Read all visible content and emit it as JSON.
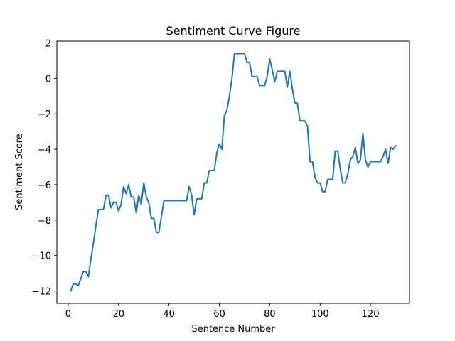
{
  "chart_data": {
    "type": "line",
    "title": "Sentiment Curve Figure",
    "xlabel": "Sentence Number",
    "ylabel": "Sentiment Score",
    "xlim": [
      -4.5,
      135.5
    ],
    "ylim": [
      -12.7,
      2.1
    ],
    "xticks": [
      0,
      20,
      40,
      60,
      80,
      100,
      120
    ],
    "yticks": [
      -12,
      -10,
      -8,
      -6,
      -4,
      -2,
      0,
      2
    ],
    "grid": false,
    "line_color": "#1f77b4",
    "series": [
      {
        "x": [
          1,
          2,
          3,
          4,
          5,
          6,
          7,
          8,
          9,
          10,
          11,
          12,
          13,
          14,
          15,
          16,
          17,
          18,
          19,
          20,
          21,
          22,
          23,
          24,
          25,
          26,
          27,
          28,
          29,
          30,
          31,
          32,
          33,
          34,
          35,
          36,
          37,
          38,
          39,
          40,
          41,
          42,
          43,
          44,
          45,
          46,
          47,
          48,
          49,
          50,
          51,
          52,
          53,
          54,
          55,
          56,
          57,
          58,
          59,
          60,
          61,
          62,
          63,
          64,
          65,
          66,
          67,
          68,
          69,
          70,
          71,
          72,
          73,
          74,
          75,
          76,
          77,
          78,
          79,
          80,
          81,
          82,
          83,
          84,
          85,
          86,
          87,
          88,
          89,
          90,
          91,
          92,
          93,
          94,
          95,
          96,
          97,
          98,
          99,
          100,
          101,
          102,
          103,
          104,
          105,
          106,
          107,
          108,
          109,
          110,
          111,
          112,
          113,
          114,
          115,
          116,
          117,
          118,
          119,
          120,
          121,
          122,
          123,
          124,
          125,
          126,
          127,
          128,
          129,
          130
        ],
        "y": [
          -12.0,
          -11.6,
          -11.6,
          -11.7,
          -11.3,
          -10.9,
          -10.9,
          -11.2,
          -10.2,
          -9.3,
          -8.3,
          -7.4,
          -7.4,
          -7.4,
          -6.6,
          -6.6,
          -7.3,
          -7.0,
          -7.0,
          -7.5,
          -7.1,
          -6.1,
          -6.5,
          -6.0,
          -6.7,
          -6.7,
          -7.6,
          -6.6,
          -7.1,
          -5.9,
          -6.7,
          -7.0,
          -7.9,
          -7.9,
          -8.7,
          -8.7,
          -7.8,
          -6.9,
          -6.9,
          -6.9,
          -6.9,
          -6.9,
          -6.9,
          -6.9,
          -6.9,
          -6.9,
          -6.9,
          -6.1,
          -6.6,
          -7.7,
          -6.8,
          -6.8,
          -6.8,
          -5.9,
          -5.9,
          -5.2,
          -5.2,
          -5.2,
          -4.2,
          -3.7,
          -4.0,
          -2.1,
          -1.8,
          -1.0,
          0.0,
          1.4,
          1.4,
          1.4,
          1.4,
          1.4,
          0.9,
          0.9,
          0.1,
          0.1,
          0.1,
          -0.4,
          -0.4,
          -0.4,
          0.1,
          1.1,
          0.5,
          -0.2,
          0.4,
          0.4,
          0.4,
          0.4,
          -0.5,
          0.4,
          -0.6,
          -1.4,
          -1.4,
          -2.4,
          -2.4,
          -2.4,
          -2.7,
          -4.7,
          -4.7,
          -5.6,
          -5.9,
          -5.9,
          -6.4,
          -6.4,
          -5.7,
          -5.7,
          -5.7,
          -4.1,
          -4.1,
          -5.1,
          -5.9,
          -5.9,
          -5.4,
          -4.6,
          -4.4,
          -3.9,
          -4.8,
          -4.6,
          -3.1,
          -4.6,
          -5.0,
          -4.7,
          -4.7,
          -4.7,
          -4.7,
          -4.7,
          -4.4,
          -4.0,
          -4.8,
          -3.9,
          -4.0,
          -3.8
        ]
      }
    ]
  }
}
